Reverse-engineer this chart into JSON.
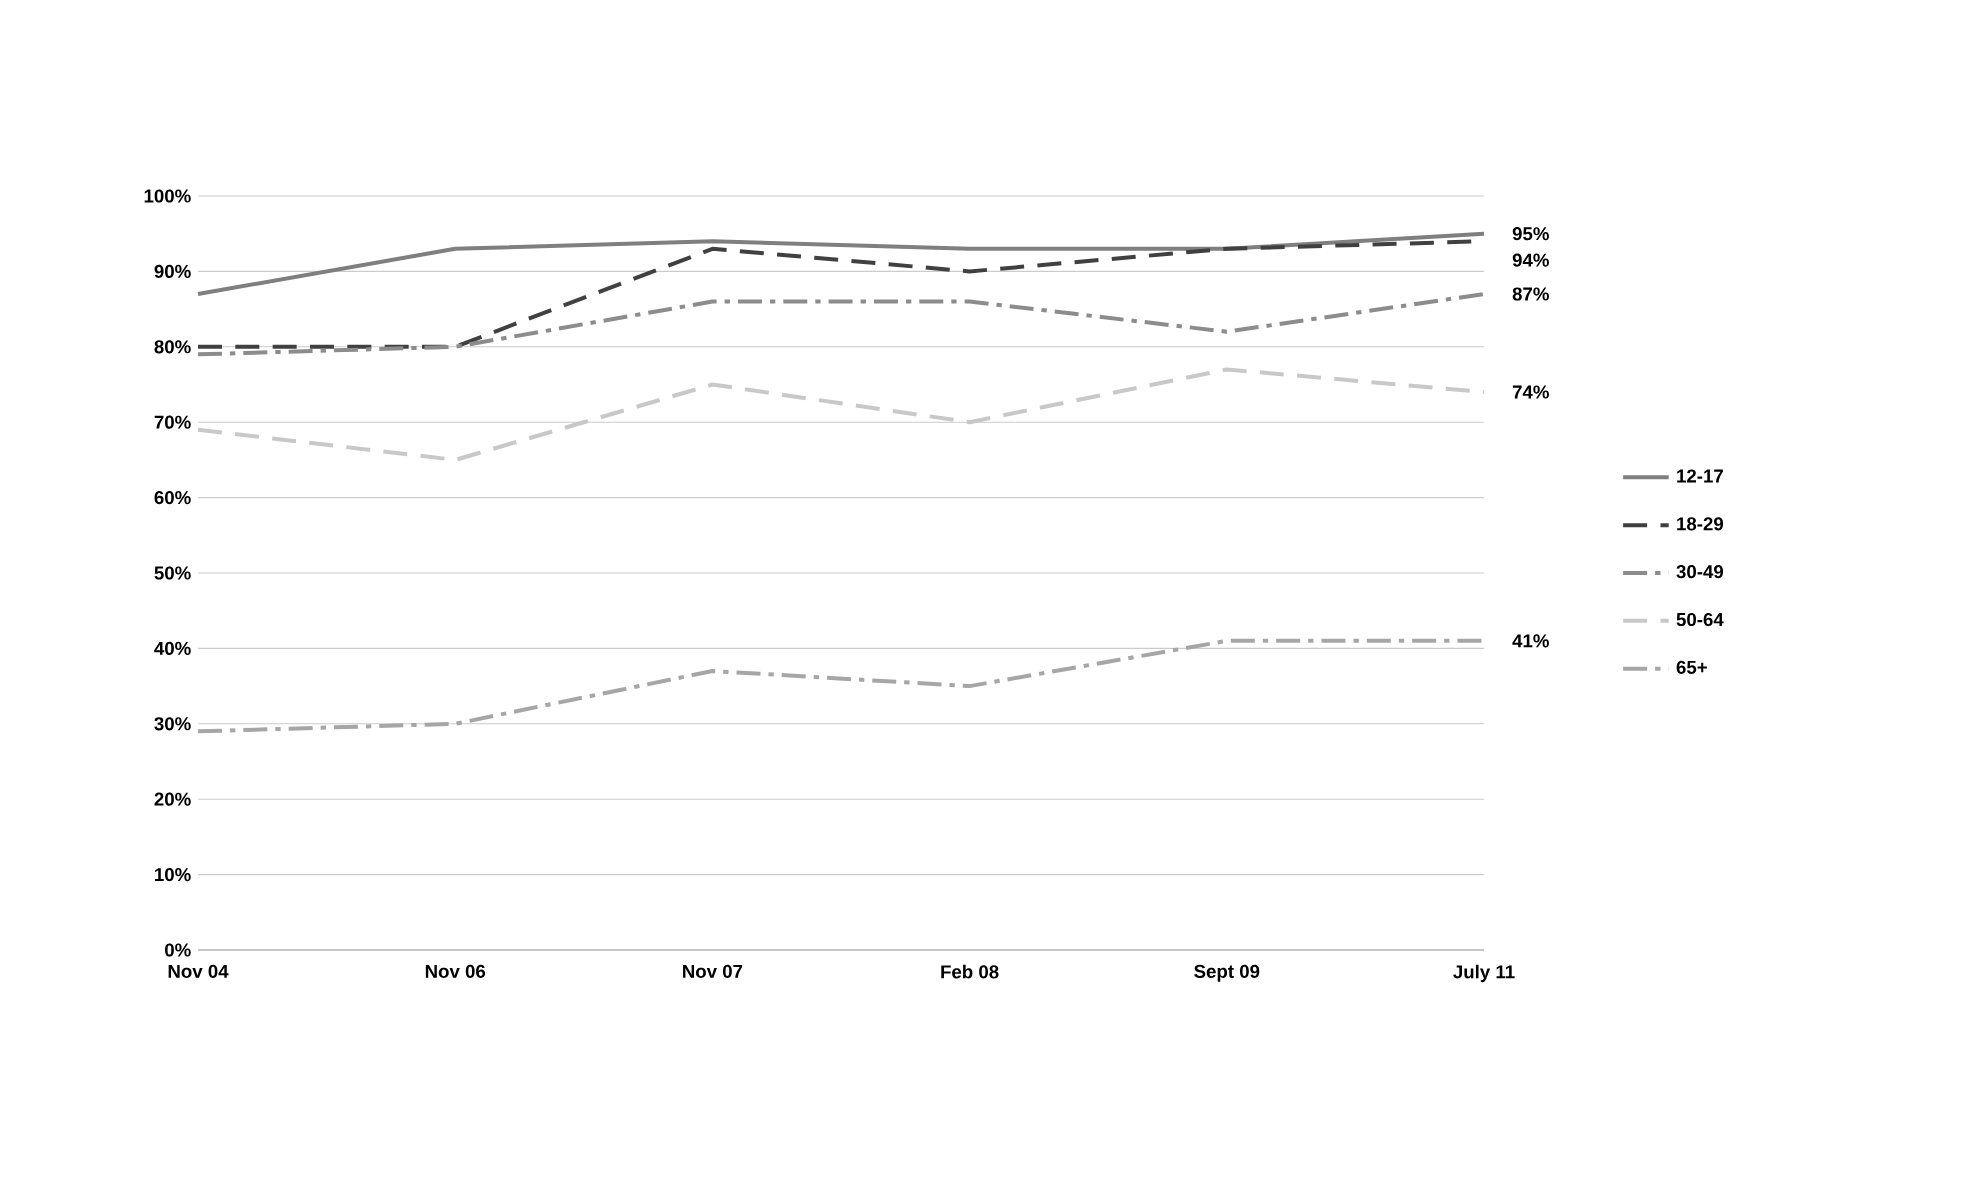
{
  "chart_data": {
    "type": "line",
    "categories": [
      "Nov 04",
      "Nov 06",
      "Nov 07",
      "Feb 08",
      "Sept 09",
      "July 11"
    ],
    "series": [
      {
        "name": "12-17",
        "color": "#7f7f7f",
        "line_style": "solid",
        "values": [
          87,
          93,
          94,
          93,
          93,
          95
        ],
        "value_labels": [
          null,
          null,
          null,
          null,
          null,
          "95%"
        ]
      },
      {
        "name": "18-29",
        "color": "#404040",
        "line_style": "dashed",
        "values": [
          80,
          80,
          93,
          90,
          93,
          94
        ],
        "value_labels": [
          null,
          null,
          null,
          null,
          null,
          "94%"
        ]
      },
      {
        "name": "30-49",
        "color": "#8c8c8c",
        "line_style": "dashdot",
        "values": [
          79,
          80,
          86,
          86,
          82,
          87
        ],
        "value_labels": [
          null,
          null,
          null,
          null,
          null,
          "87%"
        ]
      },
      {
        "name": "50-64",
        "color": "#c8c8c8",
        "line_style": "dashed",
        "values": [
          69,
          65,
          75,
          70,
          77,
          74
        ],
        "value_labels": [
          null,
          null,
          null,
          null,
          null,
          "74%"
        ]
      },
      {
        "name": "65+",
        "color": "#a6a6a6",
        "line_style": "dashdot",
        "values": [
          29,
          30,
          37,
          35,
          41,
          41
        ],
        "value_labels": [
          null,
          null,
          null,
          null,
          null,
          "41%"
        ]
      }
    ],
    "ylim": [
      0,
      100
    ],
    "yticks": [
      {
        "value": 0,
        "label": "0%"
      },
      {
        "value": 10,
        "label": "10%"
      },
      {
        "value": 20,
        "label": "20%"
      },
      {
        "value": 30,
        "label": "30%"
      },
      {
        "value": 40,
        "label": "40%"
      },
      {
        "value": 50,
        "label": "50%"
      },
      {
        "value": 60,
        "label": "60%"
      },
      {
        "value": 70,
        "label": "70%"
      },
      {
        "value": 80,
        "label": "80%"
      },
      {
        "value": 90,
        "label": "90%"
      },
      {
        "value": 100,
        "label": "100%"
      }
    ],
    "grid": "y",
    "legend": "right",
    "marker": "none"
  }
}
